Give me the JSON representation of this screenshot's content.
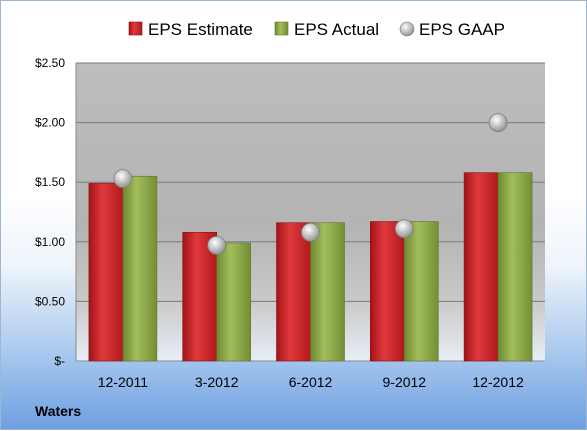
{
  "company": "Waters",
  "chart_data": {
    "type": "bar",
    "categories": [
      "12-2011",
      "3-2012",
      "6-2012",
      "9-2012",
      "12-2012"
    ],
    "series": [
      {
        "name": "EPS Estimate",
        "type": "bar",
        "color": "#c0262b",
        "values": [
          1.49,
          1.08,
          1.16,
          1.17,
          1.58
        ]
      },
      {
        "name": "EPS Actual",
        "type": "bar",
        "color": "#7f9a3d",
        "values": [
          1.55,
          0.99,
          1.16,
          1.17,
          1.58
        ]
      },
      {
        "name": "EPS GAAP",
        "type": "scatter",
        "color": "#a9a9a9",
        "values": [
          1.53,
          0.97,
          1.08,
          1.11,
          2.0
        ]
      }
    ],
    "ylim": [
      0,
      2.5
    ],
    "yticks": [
      0,
      0.5,
      1.0,
      1.5,
      2.0,
      2.5
    ],
    "ytick_labels": [
      "$-",
      "$0.50",
      "$1.00",
      "$1.50",
      "$2.00",
      "$2.50"
    ],
    "grid": true,
    "legend_position": "top"
  }
}
